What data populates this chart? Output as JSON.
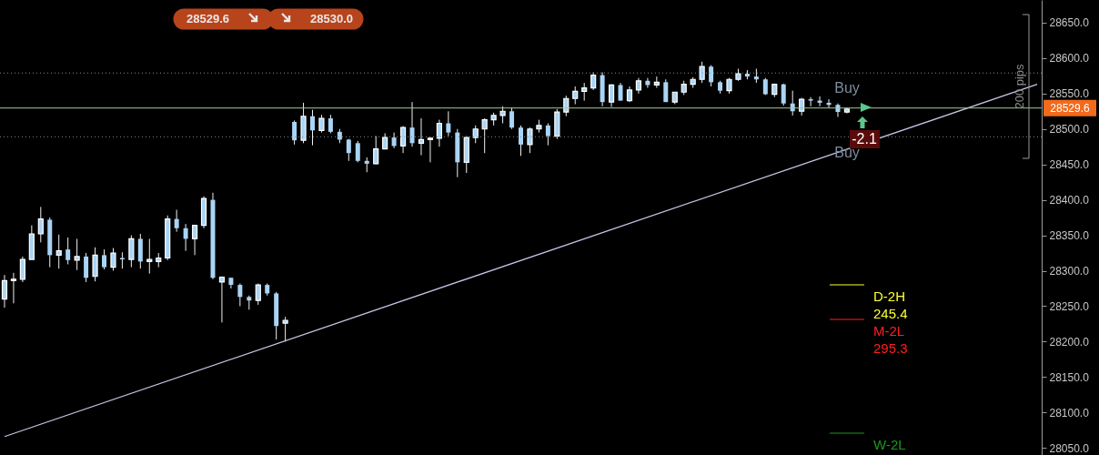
{
  "chart_data": {
    "type": "candlestick",
    "categories": [
      null,
      null,
      null,
      null,
      null,
      null,
      null,
      null,
      null,
      null,
      null,
      null,
      null,
      null,
      null,
      null,
      null,
      null,
      null,
      null,
      null,
      null,
      null,
      null,
      null,
      null,
      null,
      null,
      null,
      null,
      null,
      null,
      null,
      null,
      null,
      null,
      null,
      null,
      null,
      null,
      null,
      null,
      null,
      null,
      null,
      null,
      null,
      null,
      null,
      null,
      null,
      null,
      null,
      null,
      null,
      null,
      null,
      null,
      null,
      null,
      null,
      null,
      null,
      null,
      null,
      null,
      null,
      null,
      null,
      null,
      null,
      null,
      null,
      null,
      null,
      null,
      null,
      null,
      null,
      null,
      null,
      null,
      null,
      null,
      null,
      null,
      null,
      null,
      null,
      null,
      null,
      null,
      null,
      null,
      null,
      null,
      null,
      null,
      null,
      null,
      null,
      null,
      null,
      null,
      null,
      null,
      null,
      null,
      null,
      null,
      null,
      null,
      null,
      null,
      null
    ],
    "color": "#a9d4f5",
    "ohlc": [
      [
        28260,
        28294,
        28248,
        28286
      ],
      [
        28286,
        28297,
        28254,
        28288
      ],
      [
        28288,
        28320,
        28284,
        28316
      ],
      [
        28316,
        28364,
        28316,
        28352
      ],
      [
        28352,
        28390,
        28340,
        28373
      ],
      [
        28372,
        28375,
        28305,
        28322
      ],
      [
        28322,
        28351,
        28303,
        28328
      ],
      [
        28330,
        28347,
        28309,
        28315
      ],
      [
        28315,
        28345,
        28301,
        28320
      ],
      [
        28320,
        28325,
        28284,
        28290
      ],
      [
        28292,
        28333,
        28285,
        28322
      ],
      [
        28322,
        28330,
        28302,
        28305
      ],
      [
        28305,
        28332,
        28300,
        28325
      ],
      [
        28318,
        28326,
        28303,
        28316
      ],
      [
        28316,
        28350,
        28305,
        28345
      ],
      [
        28345,
        28352,
        28303,
        28313
      ],
      [
        28313,
        28345,
        28296,
        28316
      ],
      [
        28313,
        28325,
        28305,
        28318
      ],
      [
        28318,
        28378,
        28315,
        28373
      ],
      [
        28373,
        28386,
        28355,
        28360
      ],
      [
        28360,
        28366,
        28328,
        28345
      ],
      [
        28345,
        28364,
        28322,
        28364
      ],
      [
        28364,
        28405,
        28360,
        28402
      ],
      [
        28400,
        28410,
        28288,
        28290
      ],
      [
        28284,
        28292,
        28227,
        28291
      ],
      [
        28290,
        28290,
        28275,
        28280
      ],
      [
        28280,
        28282,
        28250,
        28263
      ],
      [
        28263,
        28265,
        28245,
        28258
      ],
      [
        28258,
        28282,
        28252,
        28280
      ],
      [
        28280,
        28282,
        28265,
        28268
      ],
      [
        28268,
        28270,
        28203,
        28222
      ],
      [
        28226,
        28235,
        28200,
        28230
      ],
      [
        28510,
        28512,
        28478,
        28484
      ],
      [
        28484,
        28537,
        28480,
        28518
      ],
      [
        28518,
        28527,
        28477,
        28498
      ],
      [
        28498,
        28520,
        28495,
        28515
      ],
      [
        28515,
        28520,
        28494,
        28496
      ],
      [
        28496,
        28500,
        28480,
        28485
      ],
      [
        28485,
        28486,
        28455,
        28466
      ],
      [
        28480,
        28483,
        28453,
        28455
      ],
      [
        28455,
        28460,
        28439,
        28451
      ],
      [
        28451,
        28490,
        28450,
        28472
      ],
      [
        28472,
        28494,
        28472,
        28488
      ],
      [
        28488,
        28495,
        28473,
        28476
      ],
      [
        28476,
        28504,
        28466,
        28502
      ],
      [
        28502,
        28538,
        28475,
        28480
      ],
      [
        28480,
        28515,
        28463,
        28485
      ],
      [
        28485,
        28488,
        28453,
        28487
      ],
      [
        28487,
        28513,
        28475,
        28508
      ],
      [
        28508,
        28525,
        28490,
        28495
      ],
      [
        28495,
        28500,
        28432,
        28453
      ],
      [
        28453,
        28490,
        28438,
        28488
      ],
      [
        28488,
        28505,
        28480,
        28500
      ],
      [
        28500,
        28515,
        28466,
        28513
      ],
      [
        28513,
        28523,
        28505,
        28519
      ],
      [
        28519,
        28532,
        28508,
        28525
      ],
      [
        28525,
        28530,
        28500,
        28502
      ],
      [
        28502,
        28505,
        28462,
        28478
      ],
      [
        28478,
        28502,
        28466,
        28500
      ],
      [
        28500,
        28513,
        28495,
        28505
      ],
      [
        28505,
        28508,
        28477,
        28490
      ],
      [
        28490,
        28528,
        28486,
        28524
      ],
      [
        28524,
        28547,
        28518,
        28543
      ],
      [
        28543,
        28560,
        28535,
        28553
      ],
      [
        28553,
        28565,
        28540,
        28558
      ],
      [
        28558,
        28580,
        28555,
        28576
      ],
      [
        28576,
        28580,
        28532,
        28538
      ],
      [
        28538,
        28563,
        28531,
        28562
      ],
      [
        28562,
        28565,
        28540,
        28540
      ],
      [
        28540,
        28560,
        28538,
        28555
      ],
      [
        28555,
        28572,
        28550,
        28568
      ],
      [
        28568,
        28572,
        28558,
        28562
      ],
      [
        28562,
        28574,
        28558,
        28566
      ],
      [
        28566,
        28570,
        28538,
        28538
      ],
      [
        28538,
        28552,
        28535,
        28552
      ],
      [
        28552,
        28568,
        28548,
        28563
      ],
      [
        28563,
        28573,
        28558,
        28570
      ],
      [
        28570,
        28595,
        28565,
        28588
      ],
      [
        28588,
        28590,
        28560,
        28566
      ],
      [
        28566,
        28568,
        28550,
        28554
      ],
      [
        28554,
        28572,
        28550,
        28570
      ],
      [
        28570,
        28585,
        28568,
        28578
      ],
      [
        28578,
        28583,
        28570,
        28574
      ],
      [
        28574,
        28585,
        28565,
        28570
      ],
      [
        28570,
        28572,
        28548,
        28549
      ],
      [
        28549,
        28564,
        28545,
        28563
      ],
      [
        28563,
        28564,
        28533,
        28536
      ],
      [
        28536,
        28554,
        28519,
        28525
      ],
      [
        28525,
        28544,
        28519,
        28542
      ],
      [
        28542,
        28545,
        28532,
        28540
      ],
      [
        28540,
        28546,
        28532,
        28537
      ],
      [
        28537,
        28542,
        28530,
        28534
      ],
      [
        28534,
        28536,
        28517,
        28524
      ],
      [
        28524,
        28530,
        28522,
        28528
      ],
      null,
      null,
      null,
      null,
      null,
      null,
      null,
      null,
      null,
      null,
      null,
      null,
      null,
      null,
      null,
      null,
      null,
      null,
      null,
      null,
      null
    ],
    "series": [
      {
        "type": "line",
        "color": "#c8c4e6",
        "values": [
          28066,
          null,
          null,
          null,
          null,
          null,
          null,
          null,
          null,
          null,
          null,
          null,
          null,
          null,
          null,
          null,
          null,
          null,
          null,
          null,
          null,
          null,
          null,
          null,
          null,
          null,
          null,
          null,
          null,
          null,
          null,
          null,
          null,
          null,
          null,
          null,
          null,
          null,
          null,
          null,
          null,
          null,
          null,
          null,
          null,
          null,
          null,
          null,
          null,
          null,
          null,
          null,
          null,
          null,
          null,
          null,
          null,
          null,
          null,
          null,
          null,
          null,
          null,
          null,
          null,
          null,
          null,
          null,
          null,
          null,
          null,
          null,
          null,
          null,
          null,
          null,
          null,
          null,
          null,
          null,
          null,
          null,
          null,
          null,
          null,
          null,
          null,
          null,
          null,
          null,
          null,
          null,
          null,
          null,
          null,
          null,
          null,
          null,
          null,
          null,
          null,
          null,
          null,
          null,
          null,
          null,
          null,
          null,
          null,
          null,
          null,
          null,
          null,
          null,
          28563
        ]
      }
    ],
    "ylim": [
      28040,
      28682
    ],
    "yticks": [
      {
        "value": 28050,
        "label": "28050.0"
      },
      {
        "value": 28100,
        "label": "28100.0"
      },
      {
        "value": 28150,
        "label": "28150.0"
      },
      {
        "value": 28200,
        "label": "28200.0"
      },
      {
        "value": 28250,
        "label": "28250.0"
      },
      {
        "value": 28300,
        "label": "28300.0"
      },
      {
        "value": 28350,
        "label": "28350.0"
      },
      {
        "value": 28400,
        "label": "28400.0"
      },
      {
        "value": 28450,
        "label": "28450.0"
      },
      {
        "value": 28500,
        "label": "28500.0"
      },
      {
        "value": 28550,
        "label": "28550.0"
      },
      {
        "value": 28600,
        "label": "28600.0"
      },
      {
        "value": 28650,
        "label": "28650.0"
      }
    ],
    "tick_labels": "y",
    "ref_lines": [
      {
        "axis": "y",
        "value": 28529.6,
        "label": "28529.6",
        "color": "#a8c890"
      },
      {
        "axis": "y",
        "value": 28579,
        "color": "#8a8a8a",
        "line_style": "dotted"
      },
      {
        "axis": "y",
        "value": 28489,
        "color": "#8a8a8a",
        "line_style": "dotted"
      }
    ],
    "annotations": [
      "Buy",
      "-2.1",
      "Buy",
      "D-2H\n245.4",
      "M-2L\n295.3",
      "W-2L",
      "200 pips",
      "28529.6",
      "28530.0"
    ]
  }
}
